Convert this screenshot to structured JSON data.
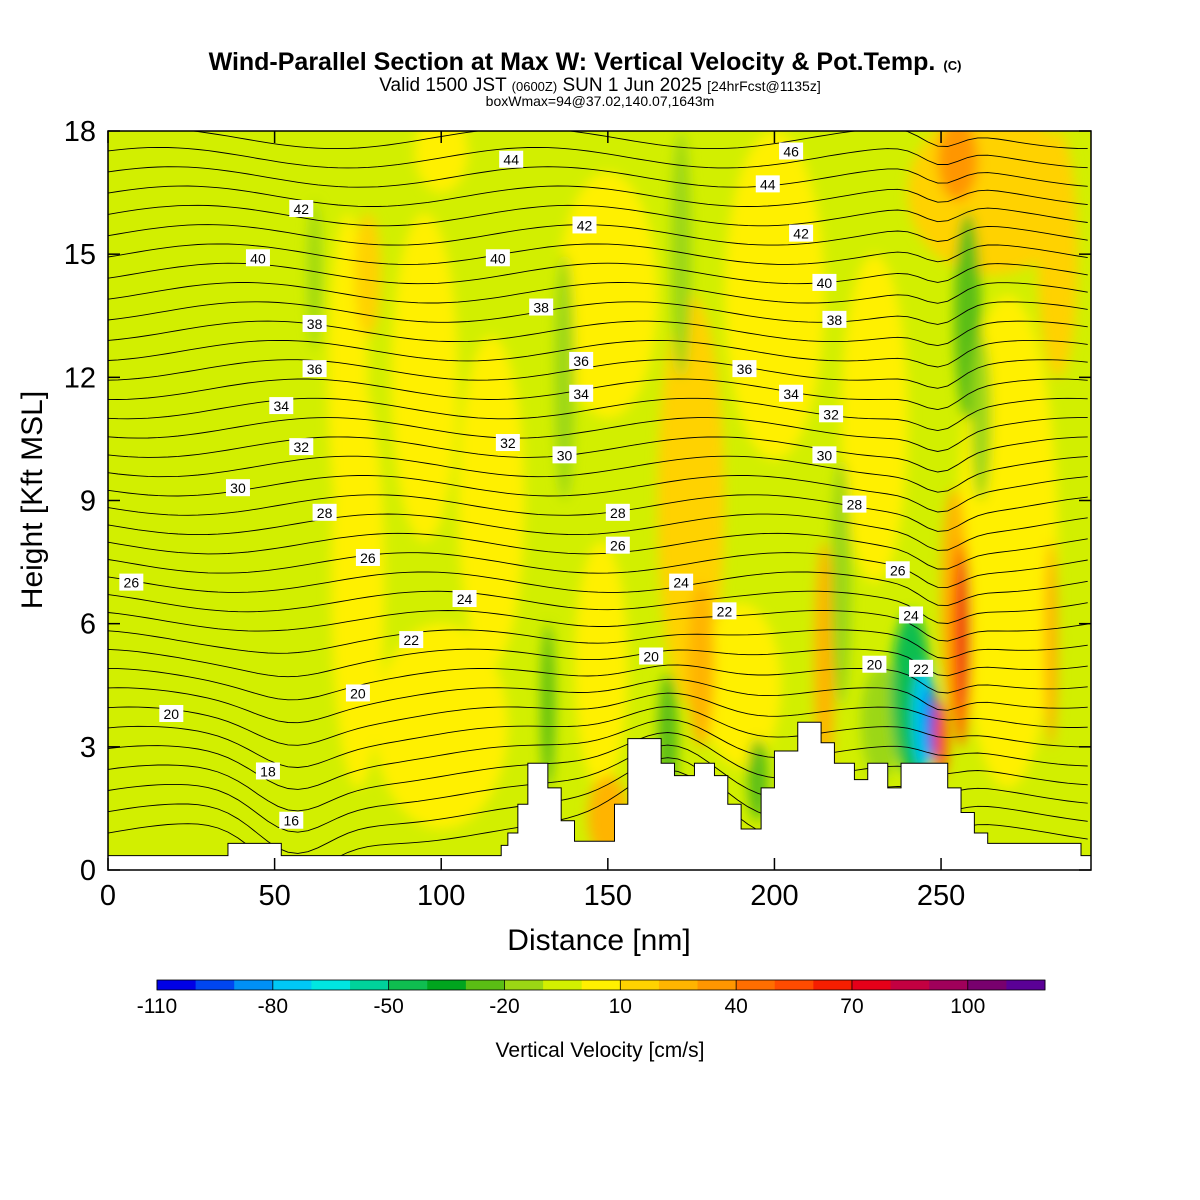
{
  "header": {
    "title": "Wind-Parallel Section at Max W: Vertical Velocity & Pot.Temp.",
    "title_suffix": "(C)",
    "subtitle_valid": "Valid 1500 JST",
    "subtitle_utc": "(0600Z)",
    "subtitle_date": "SUN 1 Jun 2025",
    "subtitle_fcst": "[24hrFcst@1135z]",
    "box_info": "boxWmax=94@37.02,140.07,1643m"
  },
  "chart_data": {
    "type": "heatmap",
    "xlabel": "Distance [nm]",
    "ylabel": "Height [Kft MSL]",
    "xlim": [
      0,
      295
    ],
    "ylim": [
      0,
      18
    ],
    "x_ticks": [
      0,
      50,
      100,
      150,
      200,
      250
    ],
    "y_ticks": [
      0,
      3,
      6,
      9,
      12,
      15,
      18
    ],
    "colorbar": {
      "label": "Vertical Velocity [cm/s]",
      "tick_labels": [
        "-110",
        "-80",
        "-50",
        "-20",
        "10",
        "40",
        "70",
        "100"
      ],
      "colors": [
        "#0000e6",
        "#0046f0",
        "#0090f5",
        "#00c8f5",
        "#00e6e0",
        "#00d29b",
        "#0fbe50",
        "#00a51e",
        "#5abe14",
        "#9bd714",
        "#d2ef00",
        "#fff000",
        "#ffd200",
        "#ffb400",
        "#ff9600",
        "#ff6e00",
        "#ff4b00",
        "#f51e00",
        "#e60019",
        "#c30041",
        "#a0005a",
        "#78006e",
        "#5a0096"
      ]
    },
    "contour_labels": [
      {
        "x": 121,
        "y": 17.3,
        "text": "44"
      },
      {
        "x": 205,
        "y": 17.5,
        "text": "46"
      },
      {
        "x": 58,
        "y": 16.1,
        "text": "42"
      },
      {
        "x": 198,
        "y": 16.7,
        "text": "44"
      },
      {
        "x": 143,
        "y": 15.7,
        "text": "42"
      },
      {
        "x": 208,
        "y": 15.5,
        "text": "42"
      },
      {
        "x": 45,
        "y": 14.9,
        "text": "40"
      },
      {
        "x": 117,
        "y": 14.9,
        "text": "40"
      },
      {
        "x": 215,
        "y": 14.3,
        "text": "40"
      },
      {
        "x": 62,
        "y": 13.3,
        "text": "38"
      },
      {
        "x": 130,
        "y": 13.7,
        "text": "38"
      },
      {
        "x": 218,
        "y": 13.4,
        "text": "38"
      },
      {
        "x": 142,
        "y": 12.4,
        "text": "36"
      },
      {
        "x": 62,
        "y": 12.2,
        "text": "36"
      },
      {
        "x": 191,
        "y": 12.2,
        "text": "36"
      },
      {
        "x": 52,
        "y": 11.3,
        "text": "34"
      },
      {
        "x": 142,
        "y": 11.6,
        "text": "34"
      },
      {
        "x": 205,
        "y": 11.6,
        "text": "34"
      },
      {
        "x": 217,
        "y": 11.1,
        "text": "32"
      },
      {
        "x": 58,
        "y": 10.3,
        "text": "32"
      },
      {
        "x": 120,
        "y": 10.4,
        "text": "32"
      },
      {
        "x": 137,
        "y": 10.1,
        "text": "30"
      },
      {
        "x": 215,
        "y": 10.1,
        "text": "30"
      },
      {
        "x": 39,
        "y": 9.3,
        "text": "30"
      },
      {
        "x": 65,
        "y": 8.7,
        "text": "28"
      },
      {
        "x": 153,
        "y": 8.7,
        "text": "28"
      },
      {
        "x": 224,
        "y": 8.9,
        "text": "28"
      },
      {
        "x": 153,
        "y": 7.9,
        "text": "26"
      },
      {
        "x": 78,
        "y": 7.6,
        "text": "26"
      },
      {
        "x": 7,
        "y": 7.0,
        "text": "26"
      },
      {
        "x": 237,
        "y": 7.3,
        "text": "26"
      },
      {
        "x": 172,
        "y": 7.0,
        "text": "24"
      },
      {
        "x": 107,
        "y": 6.6,
        "text": "24"
      },
      {
        "x": 241,
        "y": 6.2,
        "text": "24"
      },
      {
        "x": 185,
        "y": 6.3,
        "text": "22"
      },
      {
        "x": 91,
        "y": 5.6,
        "text": "22"
      },
      {
        "x": 244,
        "y": 4.9,
        "text": "22"
      },
      {
        "x": 163,
        "y": 5.2,
        "text": "20"
      },
      {
        "x": 230,
        "y": 5.0,
        "text": "20"
      },
      {
        "x": 75,
        "y": 4.3,
        "text": "20"
      },
      {
        "x": 19,
        "y": 3.8,
        "text": "20"
      },
      {
        "x": 48,
        "y": 2.4,
        "text": "18"
      },
      {
        "x": 55,
        "y": 1.2,
        "text": "16"
      }
    ]
  }
}
